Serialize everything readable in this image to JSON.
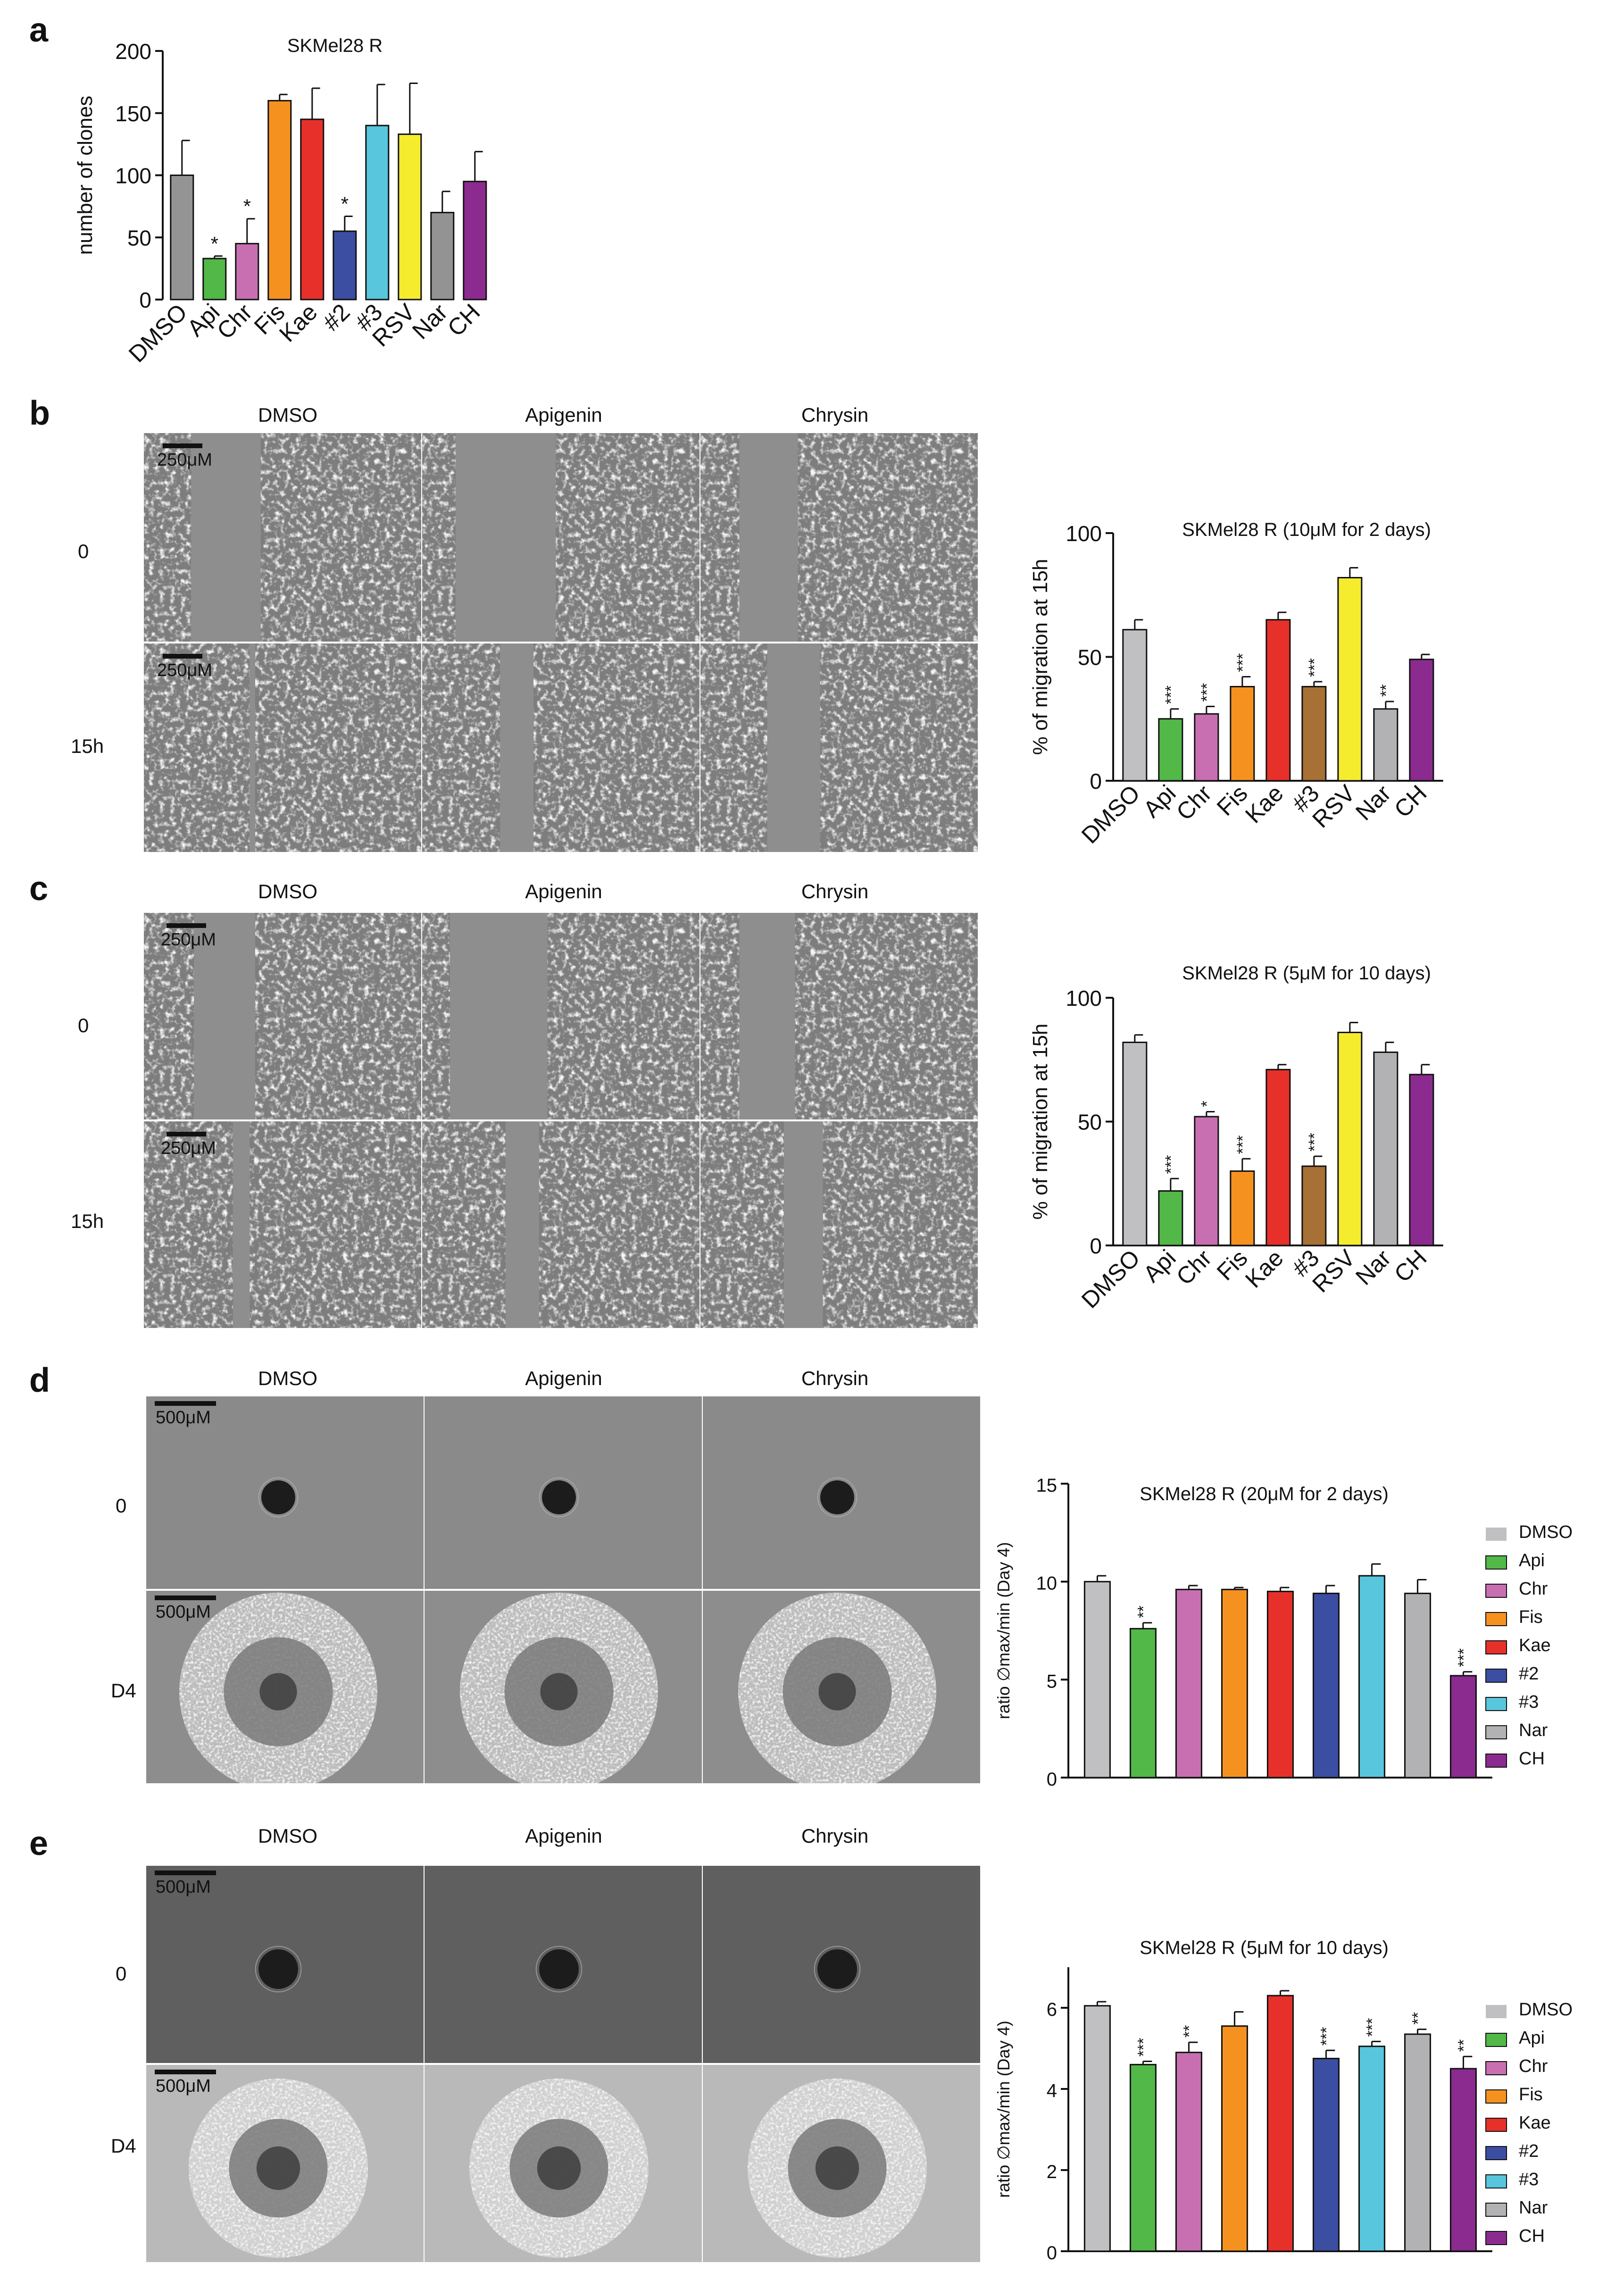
{
  "panel_labels": [
    "a",
    "b",
    "c",
    "d",
    "e"
  ],
  "conditions": [
    "DMSO",
    "Apigenin",
    "Chrysin"
  ],
  "timepoints_migration": [
    "0",
    "15h"
  ],
  "timepoints_spheroid": [
    "0",
    "D4"
  ],
  "scale_bars": {
    "migration": "250μM",
    "spheroid": "500μM"
  },
  "chart_data": [
    {
      "type": "bar",
      "panel": "a",
      "title": "SKMel28 R",
      "ylabel": "number of clones",
      "ylim": [
        0,
        200
      ],
      "yticks": [
        "0",
        "50",
        "100",
        "150",
        "200"
      ],
      "categories": [
        "DMSO",
        "Api",
        "Chr",
        "Fis",
        "Kae",
        "#2",
        "#3",
        "RSV",
        "Nar",
        "CH"
      ],
      "values": [
        100,
        33,
        45,
        160,
        145,
        55,
        140,
        133,
        70,
        95
      ],
      "errors": [
        28,
        2,
        20,
        5,
        25,
        12,
        33,
        41,
        17,
        24
      ],
      "significance": [
        "",
        "*",
        "*",
        "",
        "",
        "*",
        "",
        "",
        "",
        ""
      ],
      "colors": [
        "#949494",
        "#52b848",
        "#c86fb2",
        "#f5921f",
        "#e8302a",
        "#3c4ea2",
        "#58c6dc",
        "#f6ec2e",
        "#939393",
        "#8b2b8f"
      ]
    },
    {
      "type": "bar",
      "panel": "b",
      "title": "SKMel28 R (10μM for 2 days)",
      "ylabel": "% of migration at 15h",
      "ylim": [
        0,
        100
      ],
      "yticks": [
        "0",
        "50",
        "100"
      ],
      "categories": [
        "DMSO",
        "Api",
        "Chr",
        "Fis",
        "Kae",
        "#3",
        "RSV",
        "Nar",
        "CH"
      ],
      "values": [
        61,
        25,
        27,
        38,
        65,
        38,
        82,
        29,
        49
      ],
      "errors": [
        4,
        4,
        3,
        4,
        3,
        2,
        4,
        3,
        2
      ],
      "significance": [
        "",
        "***",
        "***",
        "***",
        "",
        "***",
        "",
        "**",
        ""
      ],
      "colors": [
        "#c0c0c3",
        "#52b848",
        "#c86fb2",
        "#f5921f",
        "#e8302a",
        "#a77035",
        "#f6ec2e",
        "#b2b2b4",
        "#8b2b8f"
      ]
    },
    {
      "type": "bar",
      "panel": "c",
      "title": "SKMel28 R (5μM for 10 days)",
      "ylabel": "% of migration at 15h",
      "ylim": [
        0,
        100
      ],
      "yticks": [
        "0",
        "50",
        "100"
      ],
      "categories": [
        "DMSO",
        "Api",
        "Chr",
        "Fis",
        "Kae",
        "#3",
        "RSV",
        "Nar",
        "CH"
      ],
      "values": [
        82,
        22,
        52,
        30,
        71,
        32,
        86,
        78,
        69
      ],
      "errors": [
        3,
        5,
        2,
        5,
        2,
        4,
        4,
        4,
        4
      ],
      "significance": [
        "",
        "***",
        "*",
        "***",
        "",
        "***",
        "",
        "",
        ""
      ],
      "colors": [
        "#c0c0c3",
        "#52b848",
        "#c86fb2",
        "#f5921f",
        "#e8302a",
        "#a77035",
        "#f6ec2e",
        "#b2b2b4",
        "#8b2b8f"
      ]
    },
    {
      "type": "bar",
      "panel": "d",
      "title": "SKMel28 R (20μM for 2 days)",
      "ylabel": "ratio ∅max/min (Day 4)",
      "ylim": [
        0,
        15
      ],
      "yticks": [
        "0",
        "5",
        "10",
        "15"
      ],
      "categories": [
        "DMSO",
        "Api",
        "Chr",
        "Fis",
        "Kae",
        "#2",
        "#3",
        "Nar",
        "CH"
      ],
      "values": [
        10.0,
        7.6,
        9.6,
        9.6,
        9.5,
        9.4,
        10.3,
        9.4,
        5.2
      ],
      "errors": [
        0.3,
        0.3,
        0.2,
        0.1,
        0.2,
        0.4,
        0.6,
        0.7,
        0.2
      ],
      "significance": [
        "",
        "**",
        "",
        "",
        "",
        "",
        "",
        "",
        "***"
      ],
      "colors": [
        "#c0c0c3",
        "#52b848",
        "#c86fb2",
        "#f5921f",
        "#e8302a",
        "#3c4ea2",
        "#58c6dc",
        "#b2b2b4",
        "#8b2b8f"
      ],
      "legend": [
        "DMSO",
        "Api",
        "Chr",
        "Fis",
        "Kae",
        "#2",
        "#3",
        "Nar",
        "CH"
      ]
    },
    {
      "type": "bar",
      "panel": "e",
      "title": "SKMel28 R (5μM for 10 days)",
      "ylabel": "ratio ∅max/min (Day 4)",
      "ylim": [
        0,
        7
      ],
      "yticks": [
        "0",
        "2",
        "4",
        "6"
      ],
      "categories": [
        "DMSO",
        "Api",
        "Chr",
        "Fis",
        "Kae",
        "#2",
        "#3",
        "Nar",
        "CH"
      ],
      "values": [
        6.05,
        4.6,
        4.9,
        5.55,
        6.3,
        4.75,
        5.05,
        5.35,
        4.5
      ],
      "errors": [
        0.1,
        0.08,
        0.25,
        0.35,
        0.12,
        0.2,
        0.12,
        0.12,
        0.3
      ],
      "significance": [
        "",
        "***",
        "**",
        "",
        "",
        "***",
        "***",
        "**",
        "**"
      ],
      "colors": [
        "#c0c0c3",
        "#52b848",
        "#c86fb2",
        "#f5921f",
        "#e8302a",
        "#3c4ea2",
        "#58c6dc",
        "#b2b2b4",
        "#8b2b8f"
      ],
      "legend": [
        "DMSO",
        "Api",
        "Chr",
        "Fis",
        "Kae",
        "#2",
        "#3",
        "Nar",
        "CH"
      ]
    }
  ]
}
